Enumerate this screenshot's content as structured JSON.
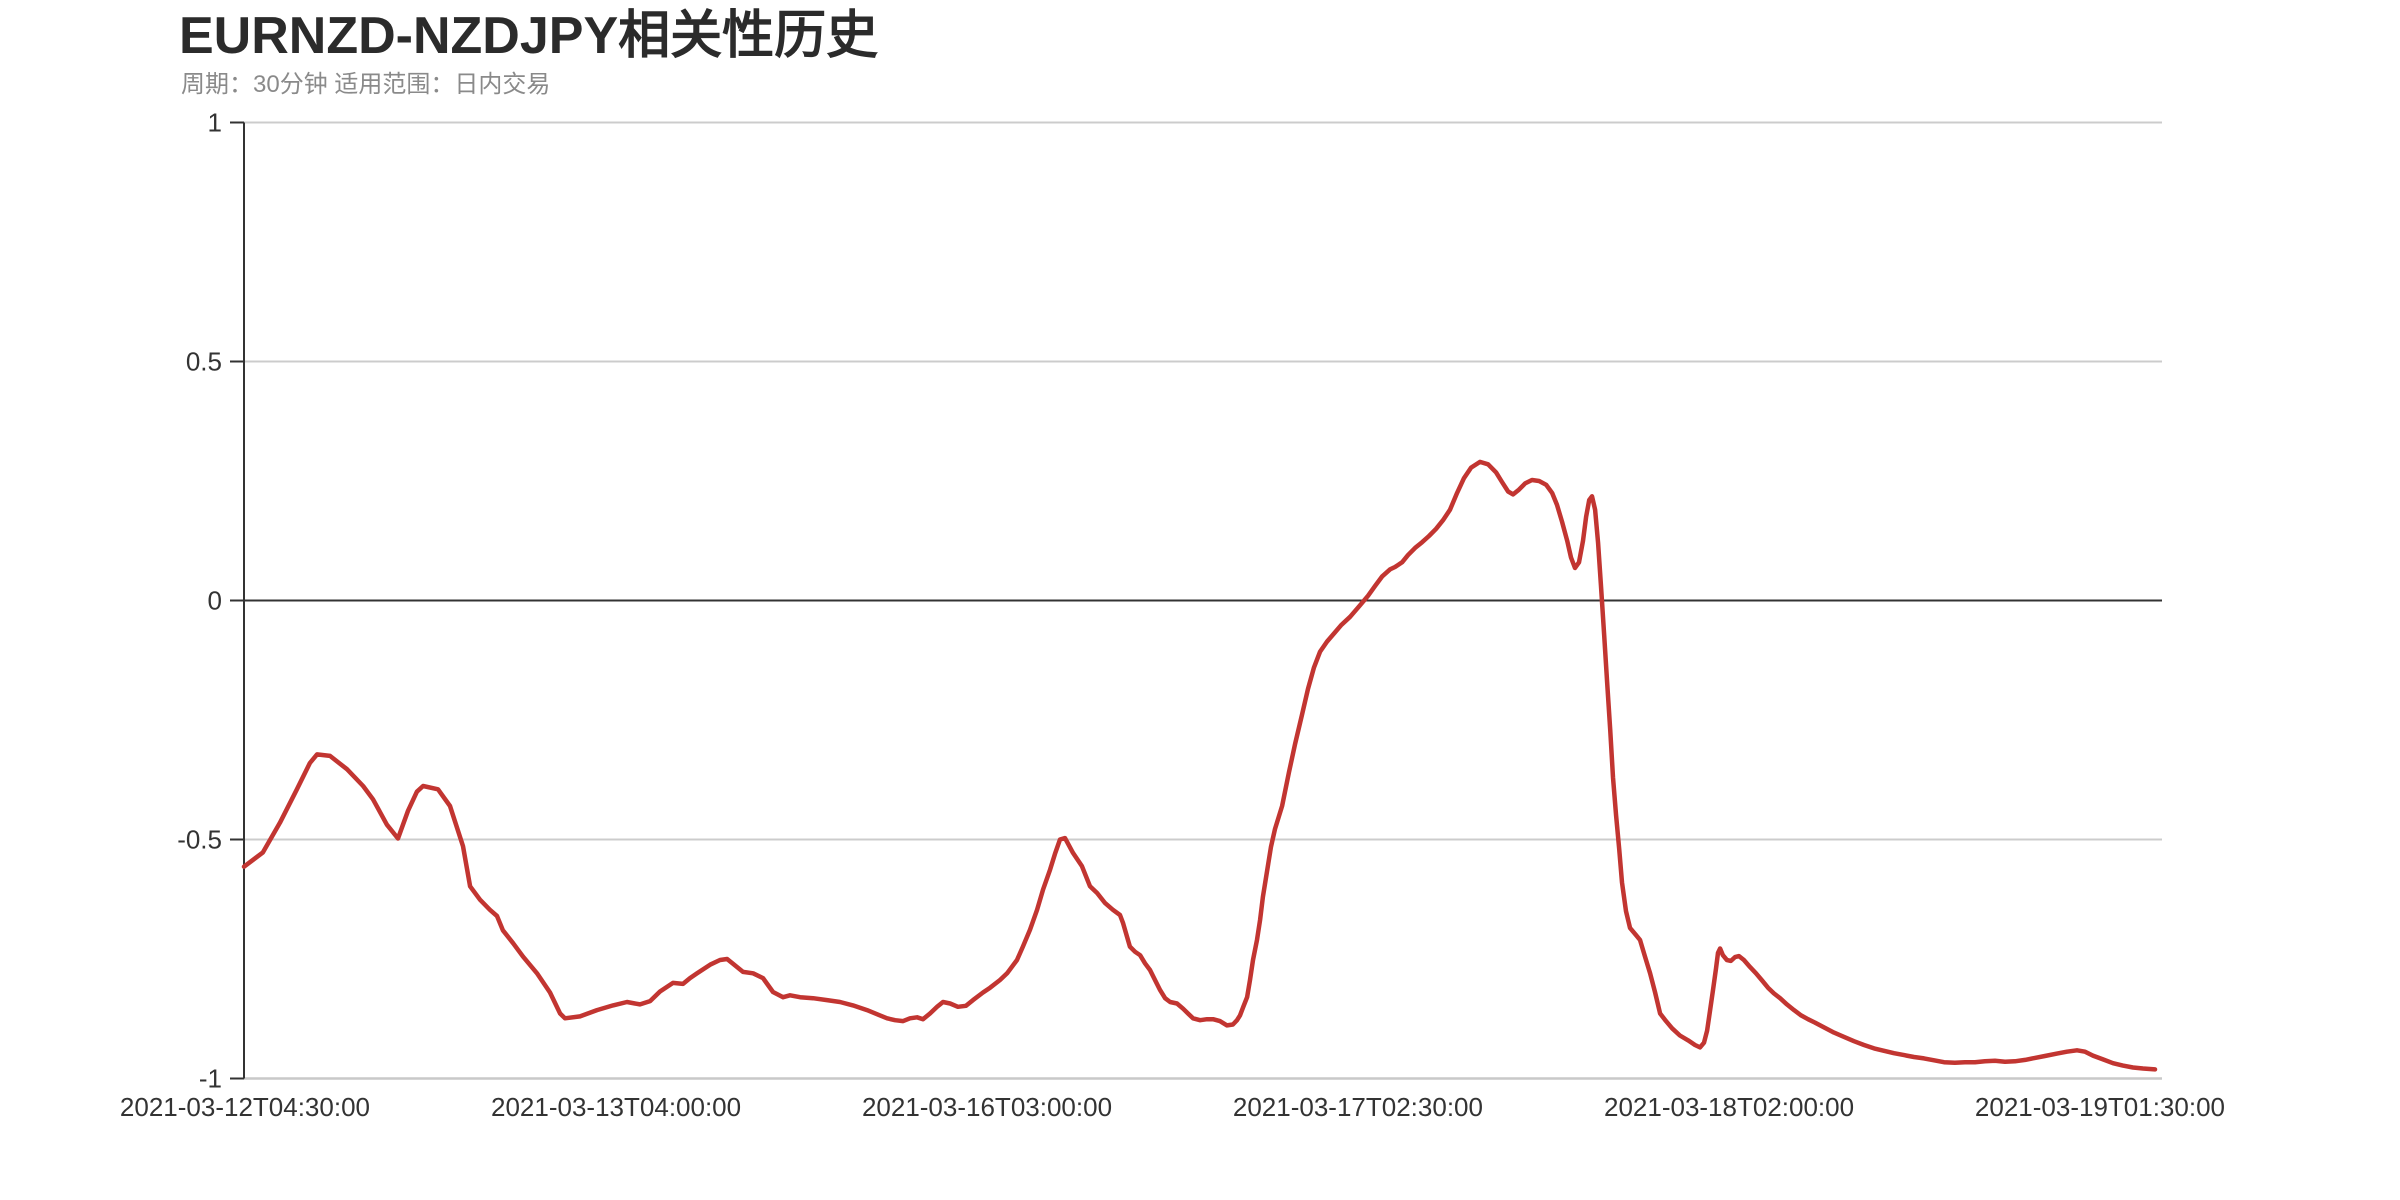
{
  "page": {
    "background": "#ffffff"
  },
  "header": {
    "title": "EURNZD-NZDJPY相关性历史",
    "subtitle": "周期：30分钟 适用范围：日内交易"
  },
  "chart_data": {
    "type": "line",
    "title": "EURNZD-NZDJPY相关性历史",
    "subtitle": "周期：30分钟 适用范围：日内交易",
    "ylabel": "",
    "xlabel": "",
    "ylim": [
      -1,
      1
    ],
    "grid": true,
    "legend_position": "none",
    "colors": {
      "line": "#c23531",
      "zero_line": "#333333",
      "grid_line": "#cccccc",
      "y_axis_line": "#333333",
      "x_axis_line": "#c9c9c9",
      "tick_label": "#333333",
      "title": "#2b2b2b",
      "subtitle": "#8a8a8a"
    },
    "y_ticks": [
      {
        "label": "1",
        "value": 1
      },
      {
        "label": "0.5",
        "value": 0.5
      },
      {
        "label": "0",
        "value": 0
      },
      {
        "label": "-0.5",
        "value": -0.5
      },
      {
        "label": "-1",
        "value": -1
      }
    ],
    "x_ticks": [
      {
        "label": "2021-03-12T04:30:00",
        "pos": 0.0005
      },
      {
        "label": "2021-03-13T04:00:00",
        "pos": 0.1947
      },
      {
        "label": "2021-03-16T03:00:00",
        "pos": 0.3888
      },
      {
        "label": "2021-03-17T02:30:00",
        "pos": 0.5829
      },
      {
        "label": "2021-03-18T02:00:00",
        "pos": 0.7771
      },
      {
        "label": "2021-03-19T01:30:00",
        "pos": 0.9712
      }
    ],
    "series": [
      {
        "name": "EURNZD-NZDJPY 相关性",
        "color": "#c23531",
        "points": [
          [
            0.0,
            -0.557
          ],
          [
            0.0099,
            -0.527
          ],
          [
            0.0188,
            -0.465
          ],
          [
            0.0277,
            -0.395
          ],
          [
            0.0345,
            -0.34
          ],
          [
            0.0382,
            -0.322
          ],
          [
            0.045,
            -0.325
          ],
          [
            0.0539,
            -0.353
          ],
          [
            0.0623,
            -0.388
          ],
          [
            0.0675,
            -0.416
          ],
          [
            0.0748,
            -0.469
          ],
          [
            0.0806,
            -0.498
          ],
          [
            0.0858,
            -0.44
          ],
          [
            0.0905,
            -0.4
          ],
          [
            0.0937,
            -0.388
          ],
          [
            0.1015,
            -0.395
          ],
          [
            0.1078,
            -0.43
          ],
          [
            0.1146,
            -0.514
          ],
          [
            0.1183,
            -0.598
          ],
          [
            0.1235,
            -0.626
          ],
          [
            0.1287,
            -0.647
          ],
          [
            0.1324,
            -0.66
          ],
          [
            0.1355,
            -0.69
          ],
          [
            0.1408,
            -0.717
          ],
          [
            0.146,
            -0.745
          ],
          [
            0.1533,
            -0.78
          ],
          [
            0.1601,
            -0.82
          ],
          [
            0.1654,
            -0.864
          ],
          [
            0.168,
            -0.874
          ],
          [
            0.1758,
            -0.87
          ],
          [
            0.1847,
            -0.857
          ],
          [
            0.1931,
            -0.847
          ],
          [
            0.2004,
            -0.84
          ],
          [
            0.2072,
            -0.845
          ],
          [
            0.2125,
            -0.838
          ],
          [
            0.2177,
            -0.818
          ],
          [
            0.2245,
            -0.8
          ],
          [
            0.2297,
            -0.802
          ],
          [
            0.2334,
            -0.79
          ],
          [
            0.2371,
            -0.78
          ],
          [
            0.2439,
            -0.762
          ],
          [
            0.2491,
            -0.752
          ],
          [
            0.2528,
            -0.75
          ],
          [
            0.2559,
            -0.76
          ],
          [
            0.2611,
            -0.777
          ],
          [
            0.2664,
            -0.78
          ],
          [
            0.2716,
            -0.79
          ],
          [
            0.2768,
            -0.819
          ],
          [
            0.2821,
            -0.83
          ],
          [
            0.2857,
            -0.826
          ],
          [
            0.291,
            -0.83
          ],
          [
            0.2978,
            -0.832
          ],
          [
            0.3051,
            -0.836
          ],
          [
            0.3119,
            -0.84
          ],
          [
            0.3187,
            -0.847
          ],
          [
            0.326,
            -0.857
          ],
          [
            0.3328,
            -0.868
          ],
          [
            0.3365,
            -0.874
          ],
          [
            0.3407,
            -0.878
          ],
          [
            0.3449,
            -0.88
          ],
          [
            0.3485,
            -0.874
          ],
          [
            0.3522,
            -0.872
          ],
          [
            0.3553,
            -0.876
          ],
          [
            0.359,
            -0.864
          ],
          [
            0.3627,
            -0.85
          ],
          [
            0.3658,
            -0.84
          ],
          [
            0.3695,
            -0.843
          ],
          [
            0.3736,
            -0.85
          ],
          [
            0.3778,
            -0.848
          ],
          [
            0.3815,
            -0.836
          ],
          [
            0.3867,
            -0.82
          ],
          [
            0.3904,
            -0.81
          ],
          [
            0.3956,
            -0.794
          ],
          [
            0.3993,
            -0.78
          ],
          [
            0.4045,
            -0.752
          ],
          [
            0.4076,
            -0.724
          ],
          [
            0.4113,
            -0.689
          ],
          [
            0.415,
            -0.647
          ],
          [
            0.4181,
            -0.605
          ],
          [
            0.4218,
            -0.563
          ],
          [
            0.4244,
            -0.53
          ],
          [
            0.427,
            -0.5
          ],
          [
            0.4296,
            -0.497
          ],
          [
            0.4338,
            -0.528
          ],
          [
            0.4385,
            -0.556
          ],
          [
            0.4427,
            -0.598
          ],
          [
            0.4464,
            -0.612
          ],
          [
            0.4506,
            -0.633
          ],
          [
            0.4547,
            -0.647
          ],
          [
            0.4584,
            -0.658
          ],
          [
            0.46,
            -0.675
          ],
          [
            0.4636,
            -0.724
          ],
          [
            0.4663,
            -0.735
          ],
          [
            0.4689,
            -0.742
          ],
          [
            0.4715,
            -0.759
          ],
          [
            0.4741,
            -0.773
          ],
          [
            0.4767,
            -0.794
          ],
          [
            0.4794,
            -0.815
          ],
          [
            0.482,
            -0.832
          ],
          [
            0.4846,
            -0.84
          ],
          [
            0.4882,
            -0.843
          ],
          [
            0.4914,
            -0.854
          ],
          [
            0.494,
            -0.864
          ],
          [
            0.4966,
            -0.874
          ],
          [
            0.5003,
            -0.878
          ],
          [
            0.5039,
            -0.876
          ],
          [
            0.5071,
            -0.876
          ],
          [
            0.5107,
            -0.88
          ],
          [
            0.5144,
            -0.889
          ],
          [
            0.5175,
            -0.887
          ],
          [
            0.5196,
            -0.878
          ],
          [
            0.5212,
            -0.868
          ],
          [
            0.5228,
            -0.851
          ],
          [
            0.5249,
            -0.83
          ],
          [
            0.5264,
            -0.794
          ],
          [
            0.528,
            -0.752
          ],
          [
            0.5301,
            -0.71
          ],
          [
            0.5317,
            -0.668
          ],
          [
            0.5332,
            -0.62
          ],
          [
            0.5353,
            -0.567
          ],
          [
            0.5374,
            -0.515
          ],
          [
            0.5395,
            -0.478
          ],
          [
            0.5432,
            -0.43
          ],
          [
            0.5468,
            -0.36
          ],
          [
            0.55,
            -0.3
          ],
          [
            0.5536,
            -0.24
          ],
          [
            0.5568,
            -0.185
          ],
          [
            0.5599,
            -0.14
          ],
          [
            0.5631,
            -0.107
          ],
          [
            0.5667,
            -0.086
          ],
          [
            0.5704,
            -0.069
          ],
          [
            0.574,
            -0.052
          ],
          [
            0.5788,
            -0.034
          ],
          [
            0.584,
            -0.01
          ],
          [
            0.5882,
            0.01
          ],
          [
            0.5918,
            0.03
          ],
          [
            0.5955,
            0.05
          ],
          [
            0.5997,
            0.065
          ],
          [
            0.6023,
            0.07
          ],
          [
            0.606,
            0.08
          ],
          [
            0.6091,
            0.095
          ],
          [
            0.6128,
            0.11
          ],
          [
            0.6165,
            0.122
          ],
          [
            0.6201,
            0.135
          ],
          [
            0.6238,
            0.15
          ],
          [
            0.6274,
            0.168
          ],
          [
            0.6311,
            0.19
          ],
          [
            0.6348,
            0.225
          ],
          [
            0.6384,
            0.256
          ],
          [
            0.6421,
            0.278
          ],
          [
            0.6468,
            0.29
          ],
          [
            0.651,
            0.285
          ],
          [
            0.6552,
            0.268
          ],
          [
            0.6583,
            0.248
          ],
          [
            0.6615,
            0.228
          ],
          [
            0.6641,
            0.222
          ],
          [
            0.6672,
            0.232
          ],
          [
            0.6704,
            0.245
          ],
          [
            0.674,
            0.252
          ],
          [
            0.6777,
            0.25
          ],
          [
            0.6814,
            0.242
          ],
          [
            0.6845,
            0.225
          ],
          [
            0.6871,
            0.2
          ],
          [
            0.6897,
            0.165
          ],
          [
            0.6924,
            0.125
          ],
          [
            0.6944,
            0.09
          ],
          [
            0.6965,
            0.068
          ],
          [
            0.6986,
            0.08
          ],
          [
            0.7007,
            0.125
          ],
          [
            0.7023,
            0.175
          ],
          [
            0.7039,
            0.21
          ],
          [
            0.7054,
            0.218
          ],
          [
            0.707,
            0.19
          ],
          [
            0.7086,
            0.12
          ],
          [
            0.7101,
            0.03
          ],
          [
            0.7117,
            -0.07
          ],
          [
            0.7133,
            -0.17
          ],
          [
            0.7149,
            -0.27
          ],
          [
            0.7164,
            -0.37
          ],
          [
            0.718,
            -0.45
          ],
          [
            0.7196,
            -0.52
          ],
          [
            0.7211,
            -0.59
          ],
          [
            0.7232,
            -0.65
          ],
          [
            0.7253,
            -0.685
          ],
          [
            0.7284,
            -0.7
          ],
          [
            0.7305,
            -0.71
          ],
          [
            0.7331,
            -0.745
          ],
          [
            0.7358,
            -0.78
          ],
          [
            0.7384,
            -0.82
          ],
          [
            0.741,
            -0.864
          ],
          [
            0.7441,
            -0.88
          ],
          [
            0.7473,
            -0.895
          ],
          [
            0.7514,
            -0.91
          ],
          [
            0.7556,
            -0.92
          ],
          [
            0.7593,
            -0.93
          ],
          [
            0.7619,
            -0.935
          ],
          [
            0.764,
            -0.925
          ],
          [
            0.7656,
            -0.9
          ],
          [
            0.7671,
            -0.86
          ],
          [
            0.7687,
            -0.815
          ],
          [
            0.7703,
            -0.77
          ],
          [
            0.7713,
            -0.737
          ],
          [
            0.7724,
            -0.728
          ],
          [
            0.7739,
            -0.742
          ],
          [
            0.776,
            -0.752
          ],
          [
            0.7781,
            -0.754
          ],
          [
            0.7802,
            -0.746
          ],
          [
            0.7823,
            -0.744
          ],
          [
            0.7849,
            -0.752
          ],
          [
            0.7881,
            -0.767
          ],
          [
            0.7912,
            -0.78
          ],
          [
            0.7944,
            -0.795
          ],
          [
            0.7975,
            -0.81
          ],
          [
            0.8006,
            -0.822
          ],
          [
            0.8038,
            -0.832
          ],
          [
            0.8074,
            -0.845
          ],
          [
            0.8111,
            -0.857
          ],
          [
            0.8148,
            -0.868
          ],
          [
            0.8184,
            -0.876
          ],
          [
            0.8221,
            -0.883
          ],
          [
            0.8268,
            -0.893
          ],
          [
            0.832,
            -0.904
          ],
          [
            0.8373,
            -0.913
          ],
          [
            0.8425,
            -0.922
          ],
          [
            0.8477,
            -0.93
          ],
          [
            0.853,
            -0.937
          ],
          [
            0.8582,
            -0.942
          ],
          [
            0.8634,
            -0.947
          ],
          [
            0.8687,
            -0.951
          ],
          [
            0.8739,
            -0.955
          ],
          [
            0.8791,
            -0.958
          ],
          [
            0.8844,
            -0.962
          ],
          [
            0.8896,
            -0.966
          ],
          [
            0.8953,
            -0.967
          ],
          [
            0.9006,
            -0.966
          ],
          [
            0.9058,
            -0.966
          ],
          [
            0.911,
            -0.964
          ],
          [
            0.9163,
            -0.963
          ],
          [
            0.9215,
            -0.965
          ],
          [
            0.9267,
            -0.964
          ],
          [
            0.932,
            -0.961
          ],
          [
            0.9372,
            -0.957
          ],
          [
            0.9424,
            -0.953
          ],
          [
            0.9487,
            -0.948
          ],
          [
            0.9539,
            -0.944
          ],
          [
            0.9592,
            -0.941
          ],
          [
            0.9634,
            -0.944
          ],
          [
            0.9675,
            -0.952
          ],
          [
            0.9728,
            -0.96
          ],
          [
            0.978,
            -0.968
          ],
          [
            0.9832,
            -0.973
          ],
          [
            0.9885,
            -0.977
          ],
          [
            0.9937,
            -0.979
          ],
          [
            1.0,
            -0.981
          ]
        ]
      }
    ]
  }
}
